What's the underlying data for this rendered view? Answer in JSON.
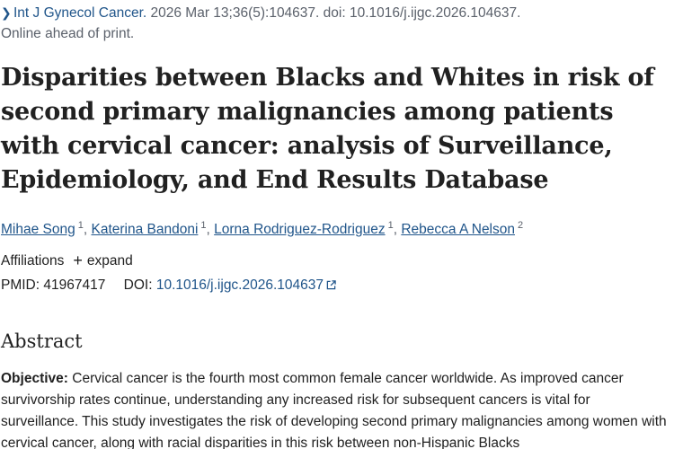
{
  "citation": {
    "journal": "Int J Gynecol Cancer.",
    "details": " 2026 Mar 13;36(5):104637. doi: 10.1016/j.ijgc.2026.104637.",
    "status": "Online ahead of print."
  },
  "article": {
    "title": "Disparities between Blacks and Whites in risk of second primary malignancies among patients with cervical cancer: analysis of Surveillance, Epidemiology, and End Results Database"
  },
  "authors": [
    {
      "name": "Mihae Song",
      "aff": "1"
    },
    {
      "name": "Katerina Bandoni",
      "aff": "1"
    },
    {
      "name": "Lorna Rodriguez-Rodriguez",
      "aff": "1"
    },
    {
      "name": "Rebecca A Nelson",
      "aff": "2"
    }
  ],
  "author_separator": ", ",
  "affiliations": {
    "label": "Affiliations",
    "expand_label": "expand"
  },
  "identifiers": {
    "pmid_label": "PMID:",
    "pmid": "41967417",
    "doi_label": "DOI:",
    "doi": "10.1016/j.ijgc.2026.104637"
  },
  "abstract": {
    "heading": "Abstract",
    "objective_label": "Objective:",
    "objective_text": " Cervical cancer is the fourth most common female cancer worldwide. As improved cancer survivorship rates continue, understanding any increased risk for subsequent cancers is vital for surveillance. This study investigates the risk of developing second primary malignancies among women with cervical cancer, along with racial disparities in this risk between non-Hispanic Blacks"
  },
  "icons": {
    "citation_chevron": "chevron-right-icon",
    "expand": "plus-icon",
    "doi_external": "external-link-icon"
  },
  "colors": {
    "link": "#20558a",
    "text": "#212121",
    "muted": "#5b616b"
  }
}
